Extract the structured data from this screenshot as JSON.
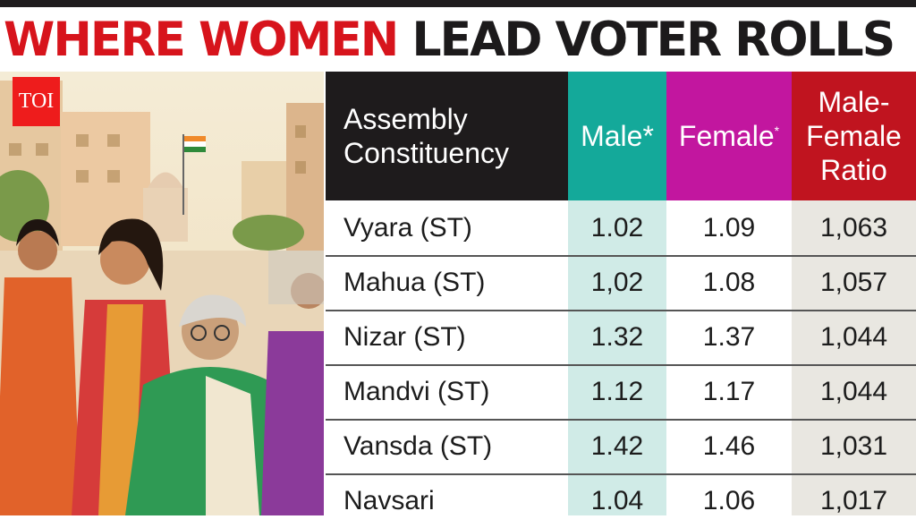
{
  "branding": {
    "logo": "TOI"
  },
  "title": {
    "part1": "WHERE WOMEN",
    "part2": " LEAD VOTER ROLLS"
  },
  "colors": {
    "male": "#14a99a",
    "female": "#c2169f",
    "ratio": "#c0141f",
    "header": "#1e1b1c",
    "title_red": "#d7141c"
  },
  "chart_data": {
    "type": "table",
    "title": "WHERE WOMEN LEAD VOTER ROLLS",
    "columns": [
      "Assembly Constituency",
      "Male*",
      "Female*",
      "Male-Female Ratio"
    ],
    "headers": {
      "constituency": "Assembly Constituency",
      "male": "Male",
      "female": "Female",
      "ratio": "Male-Female Ratio",
      "asterisk": "*"
    },
    "rows": [
      {
        "name": "Vyara (ST)",
        "male": "1.02",
        "female": "1.09",
        "ratio": "1,063"
      },
      {
        "name": "Mahua (ST)",
        "male": "1,02",
        "female": "1.08",
        "ratio": "1,057"
      },
      {
        "name": "Nizar (ST)",
        "male": "1.32",
        "female": "1.37",
        "ratio": "1,044"
      },
      {
        "name": "Mandvi (ST)",
        "male": "1.12",
        "female": "1.17",
        "ratio": "1,044"
      },
      {
        "name": "Vansda (ST)",
        "male": "1.42",
        "female": "1.46",
        "ratio": "1,031"
      },
      {
        "name": "Navsari",
        "male": "1.04",
        "female": "1.06",
        "ratio": "1,017"
      }
    ]
  }
}
